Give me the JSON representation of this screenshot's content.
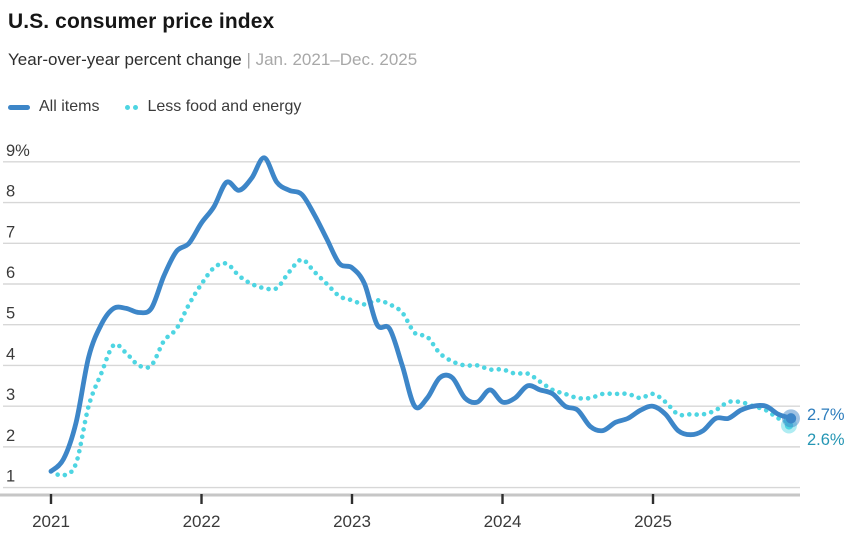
{
  "header": {
    "title": "U.S. consumer price index",
    "subtitle": "Year-over-year percent change",
    "subtitle_secondary": " | Jan. 2021–Dec. 2025"
  },
  "colors": {
    "all_items_line": "#3d86c8",
    "core_line": "#4ed5e2",
    "gridline": "#d7d7d7",
    "axis_line": "#c6c6c6",
    "tick_mark": "#2e2e2e",
    "axis_text": "#3a3a3a",
    "end_label_all_items": "#2d7dbd",
    "end_label_core": "#2596b4"
  },
  "chart_data": {
    "type": "line",
    "title": "U.S. consumer price index",
    "subtitle": "Year-over-year percent change | Jan. 2021–Dec. 2025",
    "x_start": "2021-01",
    "x_end": "2025-12",
    "x_frequency": "monthly",
    "x_tick_labels": [
      "2021",
      "2022",
      "2023",
      "2024",
      "2025"
    ],
    "y_ticks": [
      1,
      2,
      3,
      4,
      5,
      6,
      7,
      8,
      9
    ],
    "y_tick_labels": [
      "1",
      "2",
      "3",
      "4",
      "5",
      "6",
      "7",
      "8",
      "9%"
    ],
    "ylim": [
      0.8,
      9.35
    ],
    "grid": "horizontal",
    "legend_position": "top-left",
    "series": [
      {
        "name": "All items",
        "style": "solid",
        "color": "#3d86c8",
        "end_label": "2.7%",
        "values": [
          1.4,
          1.7,
          2.6,
          4.2,
          5.0,
          5.4,
          5.4,
          5.3,
          5.4,
          6.2,
          6.8,
          7.0,
          7.5,
          7.9,
          8.5,
          8.3,
          8.6,
          9.1,
          8.5,
          8.3,
          8.2,
          7.7,
          7.1,
          6.5,
          6.4,
          6.0,
          5.0,
          4.9,
          4.0,
          3.0,
          3.2,
          3.7,
          3.7,
          3.2,
          3.1,
          3.4,
          3.1,
          3.2,
          3.5,
          3.4,
          3.3,
          3.0,
          2.9,
          2.5,
          2.4,
          2.6,
          2.7,
          2.9,
          3.0,
          2.8,
          2.4,
          2.3,
          2.4,
          2.7,
          2.7,
          2.9,
          3.0,
          3.0,
          2.8,
          2.7
        ]
      },
      {
        "name": "Less food and energy",
        "style": "dotted",
        "color": "#4ed5e2",
        "end_label": "2.6%",
        "values": [
          1.4,
          1.3,
          1.6,
          3.0,
          3.8,
          4.5,
          4.3,
          4.0,
          4.0,
          4.6,
          4.9,
          5.5,
          6.0,
          6.4,
          6.5,
          6.2,
          6.0,
          5.9,
          5.9,
          6.3,
          6.6,
          6.3,
          6.0,
          5.7,
          5.6,
          5.5,
          5.6,
          5.5,
          5.3,
          4.8,
          4.7,
          4.3,
          4.1,
          4.0,
          4.0,
          3.9,
          3.9,
          3.8,
          3.8,
          3.6,
          3.4,
          3.3,
          3.2,
          3.2,
          3.3,
          3.3,
          3.3,
          3.2,
          3.3,
          3.1,
          2.8,
          2.8,
          2.8,
          2.9,
          3.1,
          3.1,
          3.0,
          2.9,
          2.7,
          2.6
        ]
      }
    ]
  }
}
